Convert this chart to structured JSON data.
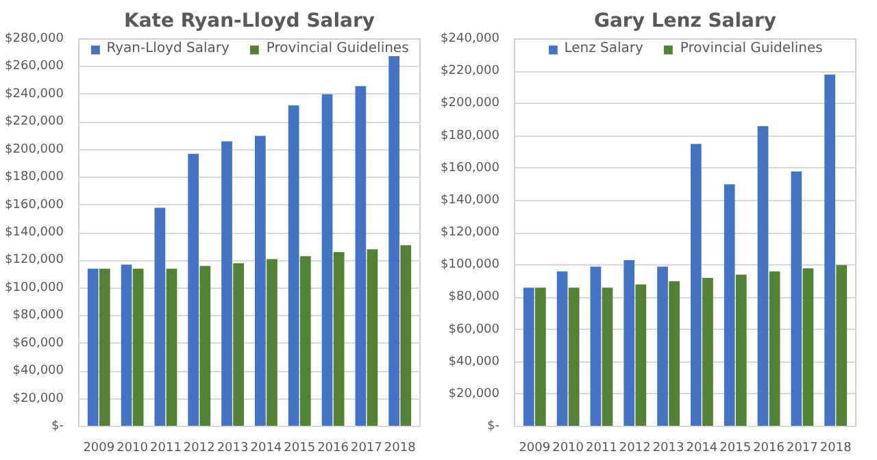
{
  "chart_data": [
    {
      "type": "bar",
      "title": "Kate Ryan-Lloyd Salary",
      "categories": [
        "2009",
        "2010",
        "2011",
        "2012",
        "2013",
        "2014",
        "2015",
        "2016",
        "2017",
        "2018"
      ],
      "series": [
        {
          "name": "Ryan-Lloyd Salary",
          "color": "#4472c4",
          "values": [
            114000,
            117000,
            158000,
            197000,
            206000,
            210000,
            232000,
            240000,
            246000,
            268000
          ]
        },
        {
          "name": "Provincial Guidelines",
          "color": "#548235",
          "values": [
            114000,
            114000,
            114000,
            116000,
            118000,
            121000,
            123000,
            126000,
            128000,
            131000
          ]
        }
      ],
      "ylim": [
        0,
        280000
      ],
      "yticks": [
        {
          "value": 0,
          "label": "$-"
        },
        {
          "value": 20000,
          "label": "$20,000"
        },
        {
          "value": 40000,
          "label": "$40,000"
        },
        {
          "value": 60000,
          "label": "$60,000"
        },
        {
          "value": 80000,
          "label": "$80,000"
        },
        {
          "value": 100000,
          "label": "$100,000"
        },
        {
          "value": 120000,
          "label": "$120,000"
        },
        {
          "value": 140000,
          "label": "$140,000"
        },
        {
          "value": 160000,
          "label": "$160,000"
        },
        {
          "value": 180000,
          "label": "$180,000"
        },
        {
          "value": 200000,
          "label": "$200,000"
        },
        {
          "value": 220000,
          "label": "$220,000"
        },
        {
          "value": 240000,
          "label": "$240,000"
        },
        {
          "value": 260000,
          "label": "$260,000"
        },
        {
          "value": 280000,
          "label": "$280,000"
        }
      ],
      "grid": "y",
      "legend": "top"
    },
    {
      "type": "bar",
      "title": "Gary Lenz Salary",
      "categories": [
        "2009",
        "2010",
        "2011",
        "2012",
        "2013",
        "2014",
        "2015",
        "2016",
        "2017",
        "2018"
      ],
      "series": [
        {
          "name": "Lenz Salary",
          "color": "#4472c4",
          "values": [
            86000,
            96000,
            99000,
            103000,
            99000,
            175000,
            150000,
            186000,
            158000,
            218000
          ]
        },
        {
          "name": "Provincial Guidelines",
          "color": "#548235",
          "values": [
            86000,
            86000,
            86000,
            88000,
            90000,
            92000,
            94000,
            96000,
            98000,
            100000
          ]
        }
      ],
      "ylim": [
        0,
        240000
      ],
      "yticks": [
        {
          "value": 0,
          "label": "$-"
        },
        {
          "value": 20000,
          "label": "$20,000"
        },
        {
          "value": 40000,
          "label": "$40,000"
        },
        {
          "value": 60000,
          "label": "$60,000"
        },
        {
          "value": 80000,
          "label": "$80,000"
        },
        {
          "value": 100000,
          "label": "$100,000"
        },
        {
          "value": 120000,
          "label": "$120,000"
        },
        {
          "value": 140000,
          "label": "$140,000"
        },
        {
          "value": 160000,
          "label": "$160,000"
        },
        {
          "value": 180000,
          "label": "$180,000"
        },
        {
          "value": 200000,
          "label": "$200,000"
        },
        {
          "value": 220000,
          "label": "$220,000"
        },
        {
          "value": 240000,
          "label": "$240,000"
        }
      ],
      "grid": "y",
      "legend": "top"
    }
  ]
}
